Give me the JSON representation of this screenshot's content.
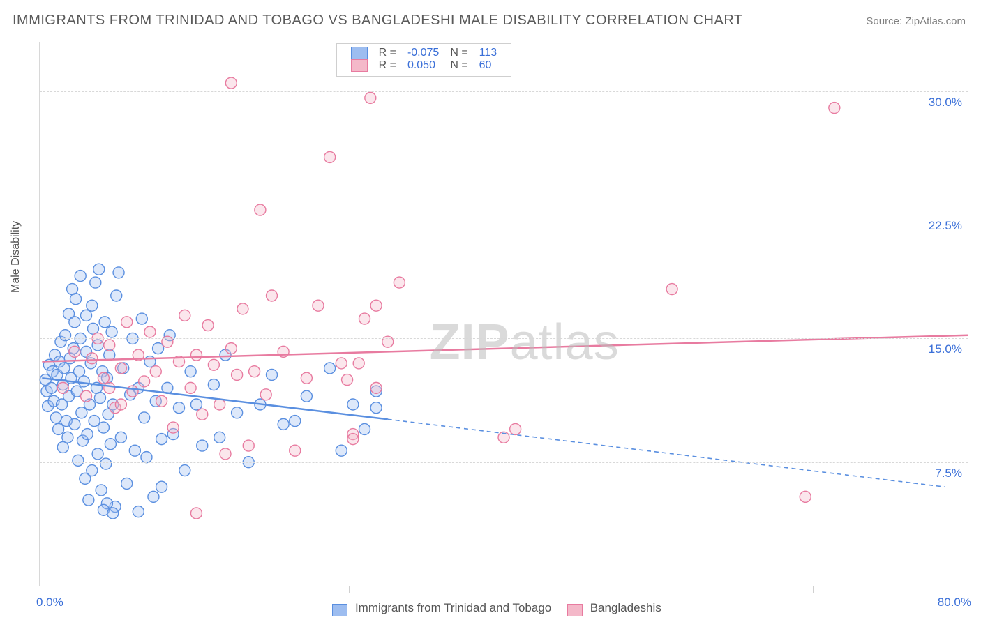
{
  "title": "IMMIGRANTS FROM TRINIDAD AND TOBAGO VS BANGLADESHI MALE DISABILITY CORRELATION CHART",
  "source_prefix": "Source: ",
  "source_name": "ZipAtlas.com",
  "ylabel": "Male Disability",
  "watermark_bold": "ZIP",
  "watermark_rest": "atlas",
  "chart": {
    "type": "scatter",
    "background_color": "#ffffff",
    "grid_color": "#d8d8d8",
    "axis_color": "#d8d8d8",
    "label_color": "#555555",
    "value_color": "#3a6fd8",
    "title_fontsize": 20,
    "label_fontsize": 16,
    "tick_fontsize": 17,
    "marker_radius": 8,
    "marker_stroke_width": 1.4,
    "marker_fill_opacity": 0.35,
    "line_width_solid": 2.5,
    "line_width_dashed": 1.6,
    "dash_pattern": "6 5",
    "xlim": [
      0,
      80
    ],
    "ylim": [
      0,
      33
    ],
    "x_ticks": [
      0,
      13.33,
      26.67,
      40,
      53.33,
      66.67,
      80
    ],
    "y_gridlines": [
      7.5,
      15.0,
      22.5,
      30.0
    ],
    "y_tick_labels": [
      "7.5%",
      "15.0%",
      "22.5%",
      "30.0%"
    ],
    "x_min_label": "0.0%",
    "x_max_label": "80.0%",
    "legend_top": {
      "rows": [
        {
          "swatch_fill": "#9dbdf0",
          "swatch_border": "#5a8fe0",
          "r_label": "R =",
          "r_value": "-0.075",
          "n_label": "N =",
          "n_value": "113"
        },
        {
          "swatch_fill": "#f4b8c9",
          "swatch_border": "#e87ba0",
          "r_label": "R =",
          "r_value": "0.050",
          "n_label": "N =",
          "n_value": "60"
        }
      ]
    },
    "legend_bottom": [
      {
        "swatch_fill": "#9dbdf0",
        "swatch_border": "#5a8fe0",
        "label": "Immigrants from Trinidad and Tobago"
      },
      {
        "swatch_fill": "#f4b8c9",
        "swatch_border": "#e87ba0",
        "label": "Bangladeshis"
      }
    ],
    "series": [
      {
        "name": "trinidad",
        "stroke": "#5a8fe0",
        "fill": "#9dbdf0",
        "trend": {
          "x1": 0.2,
          "y1": 12.6,
          "x2_solid": 30,
          "y2_solid": 10.1,
          "x2": 78,
          "y2": 6.0
        },
        "points": [
          [
            0.5,
            12.5
          ],
          [
            0.6,
            11.8
          ],
          [
            0.8,
            13.4
          ],
          [
            0.7,
            10.9
          ],
          [
            1.0,
            12.0
          ],
          [
            1.1,
            13.0
          ],
          [
            1.2,
            11.2
          ],
          [
            1.3,
            14.0
          ],
          [
            1.4,
            10.2
          ],
          [
            1.5,
            12.8
          ],
          [
            1.6,
            9.5
          ],
          [
            1.7,
            13.6
          ],
          [
            1.8,
            14.8
          ],
          [
            1.9,
            11.0
          ],
          [
            2.0,
            12.2
          ],
          [
            2.0,
            8.4
          ],
          [
            2.1,
            13.2
          ],
          [
            2.2,
            15.2
          ],
          [
            2.3,
            10.0
          ],
          [
            2.4,
            9.0
          ],
          [
            2.5,
            11.5
          ],
          [
            2.5,
            16.5
          ],
          [
            2.6,
            13.8
          ],
          [
            2.7,
            12.6
          ],
          [
            2.8,
            18.0
          ],
          [
            2.9,
            14.4
          ],
          [
            3.0,
            9.8
          ],
          [
            3.0,
            16.0
          ],
          [
            3.1,
            17.4
          ],
          [
            3.2,
            11.8
          ],
          [
            3.3,
            7.6
          ],
          [
            3.4,
            13.0
          ],
          [
            3.5,
            15.0
          ],
          [
            3.5,
            18.8
          ],
          [
            3.6,
            10.5
          ],
          [
            3.7,
            8.8
          ],
          [
            3.8,
            12.4
          ],
          [
            3.9,
            6.5
          ],
          [
            4.0,
            14.2
          ],
          [
            4.0,
            16.4
          ],
          [
            4.1,
            9.2
          ],
          [
            4.2,
            5.2
          ],
          [
            4.3,
            11.0
          ],
          [
            4.4,
            13.5
          ],
          [
            4.5,
            17.0
          ],
          [
            4.5,
            7.0
          ],
          [
            4.6,
            15.6
          ],
          [
            4.7,
            10.0
          ],
          [
            4.8,
            18.4
          ],
          [
            4.9,
            12.0
          ],
          [
            5.0,
            8.0
          ],
          [
            5.0,
            14.6
          ],
          [
            5.1,
            19.2
          ],
          [
            5.2,
            11.4
          ],
          [
            5.3,
            5.8
          ],
          [
            5.4,
            13.0
          ],
          [
            5.5,
            9.6
          ],
          [
            5.6,
            16.0
          ],
          [
            5.7,
            7.4
          ],
          [
            5.8,
            12.6
          ],
          [
            5.9,
            10.4
          ],
          [
            6.0,
            14.0
          ],
          [
            6.1,
            8.6
          ],
          [
            6.2,
            15.4
          ],
          [
            6.3,
            11.0
          ],
          [
            6.5,
            4.8
          ],
          [
            6.6,
            17.6
          ],
          [
            6.8,
            19.0
          ],
          [
            7.0,
            9.0
          ],
          [
            7.2,
            13.2
          ],
          [
            7.5,
            6.2
          ],
          [
            7.8,
            11.6
          ],
          [
            8.0,
            15.0
          ],
          [
            8.2,
            8.2
          ],
          [
            8.5,
            12.0
          ],
          [
            8.5,
            4.5
          ],
          [
            8.8,
            16.2
          ],
          [
            9.0,
            10.2
          ],
          [
            9.2,
            7.8
          ],
          [
            9.5,
            13.6
          ],
          [
            9.8,
            5.4
          ],
          [
            10.0,
            11.2
          ],
          [
            10.2,
            14.4
          ],
          [
            10.5,
            8.9
          ],
          [
            10.5,
            6.0
          ],
          [
            11.0,
            12.0
          ],
          [
            11.2,
            15.2
          ],
          [
            11.5,
            9.2
          ],
          [
            12.0,
            10.8
          ],
          [
            12.5,
            7.0
          ],
          [
            13.0,
            13.0
          ],
          [
            13.5,
            11.0
          ],
          [
            14.0,
            8.5
          ],
          [
            15.0,
            12.2
          ],
          [
            15.5,
            9.0
          ],
          [
            16.0,
            14.0
          ],
          [
            17.0,
            10.5
          ],
          [
            18.0,
            7.5
          ],
          [
            19.0,
            11.0
          ],
          [
            20.0,
            12.8
          ],
          [
            21.0,
            9.8
          ],
          [
            22.0,
            10.0
          ],
          [
            23.0,
            11.5
          ],
          [
            25.0,
            13.2
          ],
          [
            26.0,
            8.2
          ],
          [
            27.0,
            11.0
          ],
          [
            28.0,
            9.5
          ],
          [
            29.0,
            10.8
          ],
          [
            29.0,
            11.8
          ],
          [
            5.8,
            5.0
          ],
          [
            5.5,
            4.6
          ],
          [
            6.3,
            4.4
          ]
        ]
      },
      {
        "name": "bangladeshi",
        "stroke": "#e87ba0",
        "fill": "#f4b8c9",
        "trend": {
          "x1": 0.2,
          "y1": 13.6,
          "x2_solid": 80,
          "y2_solid": 15.2,
          "x2": 80,
          "y2": 15.2
        },
        "points": [
          [
            2.0,
            12.0
          ],
          [
            3.0,
            14.2
          ],
          [
            4.0,
            11.5
          ],
          [
            4.5,
            13.8
          ],
          [
            5.0,
            15.0
          ],
          [
            5.5,
            12.6
          ],
          [
            6.0,
            14.6
          ],
          [
            6.5,
            10.8
          ],
          [
            7.0,
            13.2
          ],
          [
            7.5,
            16.0
          ],
          [
            8.0,
            11.8
          ],
          [
            8.5,
            14.0
          ],
          [
            9.0,
            12.4
          ],
          [
            9.5,
            15.4
          ],
          [
            10.0,
            13.0
          ],
          [
            10.5,
            11.2
          ],
          [
            11.0,
            14.8
          ],
          [
            11.5,
            9.6
          ],
          [
            12.0,
            13.6
          ],
          [
            12.5,
            16.4
          ],
          [
            13.0,
            12.0
          ],
          [
            13.5,
            14.0
          ],
          [
            14.0,
            10.4
          ],
          [
            14.5,
            15.8
          ],
          [
            15.0,
            13.4
          ],
          [
            15.5,
            11.0
          ],
          [
            16.0,
            8.0
          ],
          [
            16.5,
            14.4
          ],
          [
            17.0,
            12.8
          ],
          [
            17.5,
            16.8
          ],
          [
            18.0,
            8.5
          ],
          [
            18.5,
            13.0
          ],
          [
            19.0,
            22.8
          ],
          [
            19.5,
            11.6
          ],
          [
            20.0,
            17.6
          ],
          [
            21.0,
            14.2
          ],
          [
            22.0,
            8.2
          ],
          [
            23.0,
            12.6
          ],
          [
            24.0,
            17.0
          ],
          [
            25.0,
            26.0
          ],
          [
            26.0,
            13.5
          ],
          [
            27.0,
            9.2
          ],
          [
            28.0,
            16.2
          ],
          [
            28.5,
            29.6
          ],
          [
            29.0,
            12.0
          ],
          [
            30.0,
            14.8
          ],
          [
            31.0,
            18.4
          ],
          [
            13.5,
            4.4
          ],
          [
            16.5,
            30.5
          ],
          [
            27.0,
            8.9
          ],
          [
            29.0,
            17.0
          ],
          [
            40.0,
            9.0
          ],
          [
            41.0,
            9.5
          ],
          [
            54.5,
            18.0
          ],
          [
            66.0,
            5.4
          ],
          [
            68.5,
            29.0
          ],
          [
            26.5,
            12.5
          ],
          [
            27.5,
            13.5
          ],
          [
            6.0,
            12.0
          ],
          [
            7.0,
            11.0
          ]
        ]
      }
    ]
  }
}
